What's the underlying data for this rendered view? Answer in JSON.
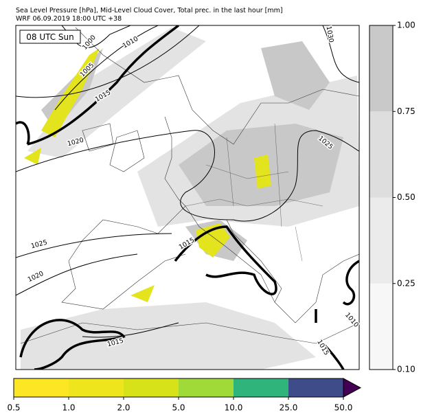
{
  "header": {
    "title": "Sea Level Pressure [hPa], Mid-Level Cloud Cover, Total prec. in the last hour [mm]",
    "subtitle": "WRF 06.09.2019 18:00 UTC +38"
  },
  "map": {
    "time_label": "08 UTC Sun",
    "isobar_labels": [
      1000,
      1005,
      1010,
      1015,
      1020,
      1030,
      1025,
      1025,
      1020,
      1015,
      1015,
      1010,
      1015
    ]
  },
  "cloud_colorbar": {
    "levels": [
      {
        "value": 0.1,
        "label": "0.10"
      },
      {
        "value": 0.25,
        "label": "0.25"
      },
      {
        "value": 0.5,
        "label": "0.50"
      },
      {
        "value": 0.75,
        "label": "0.75"
      },
      {
        "value": 1,
        "label": "1.00"
      }
    ],
    "colors": [
      "#f7f7f7",
      "#ebebeb",
      "#dedede",
      "#c9c9c9"
    ]
  },
  "precip_colorbar": {
    "levels": [
      0.5,
      {
        "value": 1,
        "label": "1.0"
      },
      {
        "value": 2,
        "label": "2.0"
      },
      {
        "value": 5,
        "label": "5.0"
      },
      {
        "value": 10,
        "label": "10.0"
      },
      {
        "value": 25,
        "label": "25.0"
      },
      {
        "value": 50,
        "label": "50.0"
      }
    ],
    "colors": [
      "#fde725",
      "#efe51c",
      "#d8e219",
      "#a0da39",
      "#2fb47c",
      "#3e4c8a"
    ],
    "extend_color": "#440154"
  }
}
